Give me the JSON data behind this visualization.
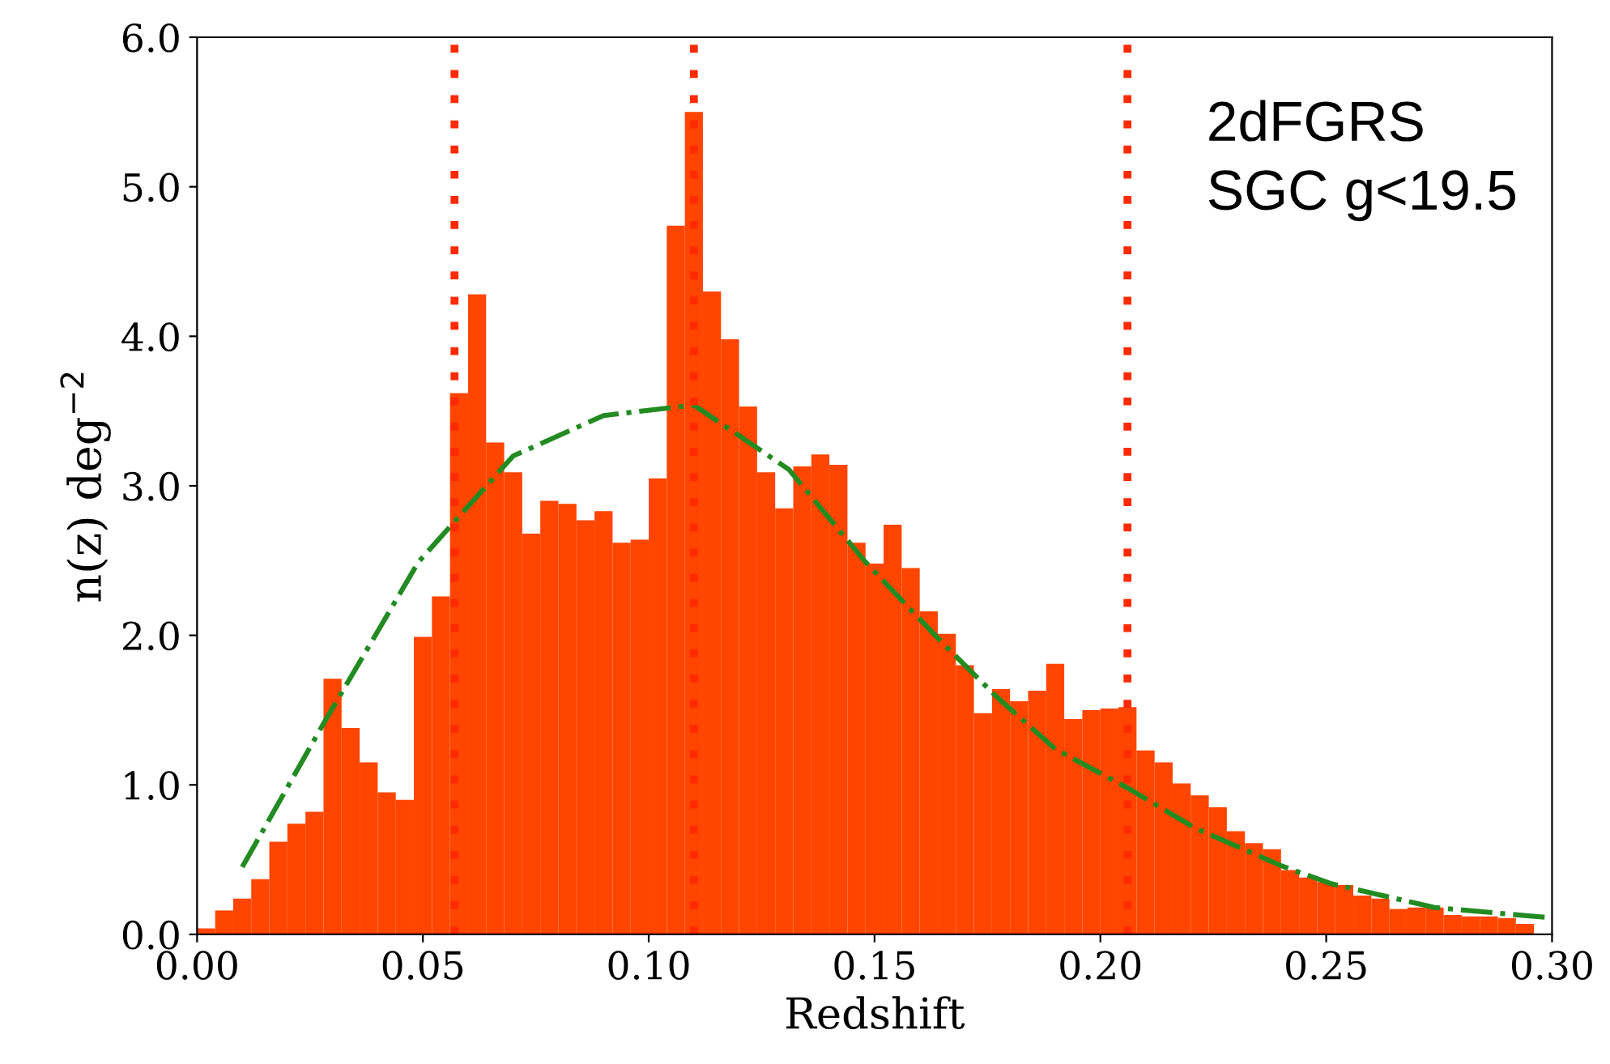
{
  "chart_data": {
    "type": "histogram",
    "xlabel": "Redshift",
    "ylabel": "n(z) deg$^{−2}$",
    "annotations": [
      "2dFGRS\nSGC g<19.5"
    ],
    "bins": [
      0.0,
      0.004,
      0.008,
      0.012,
      0.016,
      0.02,
      0.024,
      0.028,
      0.032,
      0.036,
      0.04,
      0.044,
      0.048,
      0.052,
      0.056,
      0.06,
      0.064,
      0.068,
      0.072,
      0.076,
      0.08,
      0.084,
      0.088,
      0.092,
      0.096,
      0.1,
      0.104,
      0.108,
      0.112,
      0.116,
      0.12,
      0.124,
      0.128,
      0.132,
      0.136,
      0.14,
      0.144,
      0.148,
      0.152,
      0.156,
      0.16,
      0.164,
      0.168,
      0.172,
      0.176,
      0.18,
      0.184,
      0.188,
      0.192,
      0.196,
      0.2,
      0.204,
      0.208,
      0.212,
      0.216,
      0.22,
      0.224,
      0.228,
      0.232,
      0.236,
      0.24,
      0.244,
      0.248,
      0.252,
      0.256,
      0.26,
      0.264,
      0.268,
      0.272,
      0.276,
      0.28,
      0.284,
      0.288,
      0.292,
      0.296,
      0.3
    ],
    "values": [
      0.04,
      0.16,
      0.24,
      0.37,
      0.62,
      0.74,
      0.82,
      1.71,
      1.38,
      1.15,
      0.95,
      0.9,
      1.99,
      2.26,
      3.62,
      4.28,
      3.29,
      3.09,
      2.68,
      2.9,
      2.88,
      2.77,
      2.83,
      2.62,
      2.64,
      3.05,
      4.74,
      5.5,
      4.3,
      3.98,
      3.53,
      3.09,
      2.85,
      3.13,
      3.21,
      3.14,
      2.62,
      2.48,
      2.74,
      2.45,
      2.16,
      2.01,
      1.8,
      1.48,
      1.64,
      1.56,
      1.63,
      1.81,
      1.44,
      1.5,
      1.51,
      1.52,
      1.23,
      1.15,
      1.01,
      0.93,
      0.85,
      0.69,
      0.61,
      0.57,
      0.43,
      0.38,
      0.35,
      0.33,
      0.26,
      0.24,
      0.17,
      0.18,
      0.18,
      0.13,
      0.12,
      0.12,
      0.11,
      0.07,
      0.0
    ],
    "color": "#ff4500",
    "series": [
      {
        "type": "line",
        "color": "#228b22",
        "line_style": "dashdot",
        "x": [
          0.01,
          0.028,
          0.049,
          0.07,
          0.09,
          0.11,
          0.131,
          0.148,
          0.165,
          0.177,
          0.19,
          0.206,
          0.221,
          0.24,
          0.251,
          0.274,
          0.3
        ],
        "values": [
          0.45,
          1.41,
          2.49,
          3.2,
          3.47,
          3.54,
          3.11,
          2.49,
          1.95,
          1.59,
          1.24,
          0.98,
          0.71,
          0.46,
          0.34,
          0.18,
          0.11
        ]
      }
    ],
    "ref_lines": [
      {
        "axis": "x",
        "value": 0.057,
        "color": "#ff2a00",
        "line_style": "dotted"
      },
      {
        "axis": "x",
        "value": 0.11,
        "color": "#ff2a00",
        "line_style": "dotted"
      },
      {
        "axis": "x",
        "value": 0.206,
        "color": "#ff2a00",
        "line_style": "dotted"
      }
    ],
    "xlim": [
      0.0,
      0.3
    ],
    "xticks": [
      {
        "value": 0.0,
        "label": "0.00"
      },
      {
        "value": 0.05,
        "label": "0.05"
      },
      {
        "value": 0.1,
        "label": "0.10"
      },
      {
        "value": 0.15,
        "label": "0.15"
      },
      {
        "value": 0.2,
        "label": "0.20"
      },
      {
        "value": 0.25,
        "label": "0.25"
      },
      {
        "value": 0.3,
        "label": "0.30"
      }
    ],
    "ylim": [
      0.0,
      6.0
    ],
    "yticks": [
      {
        "value": 0,
        "label": "0.0"
      },
      {
        "value": 1,
        "label": "1.0"
      },
      {
        "value": 2,
        "label": "2.0"
      },
      {
        "value": 3,
        "label": "3.0"
      },
      {
        "value": 4,
        "label": "4.0"
      },
      {
        "value": 5,
        "label": "5.0"
      },
      {
        "value": 6,
        "label": "6.0"
      }
    ],
    "grid": false,
    "legend": false
  }
}
